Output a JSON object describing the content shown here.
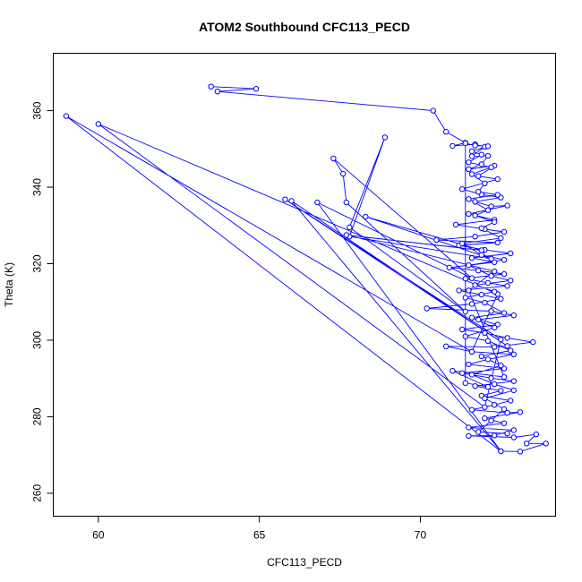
{
  "chart_data": {
    "type": "line",
    "title": "ATOM2 Southbound CFC113_PECD",
    "xlabel": "CFC113_PECD",
    "ylabel": "Theta (K)",
    "xlim": [
      58.6,
      74.2
    ],
    "ylim": [
      254,
      375
    ],
    "xticks": [
      60,
      65,
      70
    ],
    "yticks": [
      260,
      280,
      300,
      320,
      340,
      360
    ],
    "markers": "open-circle",
    "colors": {
      "series": "#0000ff",
      "axis": "#000000"
    },
    "series": [
      {
        "values": [
          [
            63.5,
            366.3
          ],
          [
            64.9,
            365.7
          ],
          [
            63.7,
            365.0
          ],
          [
            70.4,
            360.0
          ],
          [
            70.8,
            354.5
          ],
          [
            71.4,
            351.6
          ],
          [
            71.0,
            350.8
          ],
          [
            71.7,
            351.2
          ],
          [
            72.0,
            350.6
          ],
          [
            71.6,
            348.1
          ],
          [
            72.1,
            348.2
          ],
          [
            71.9,
            346.0
          ],
          [
            71.5,
            344.7
          ],
          [
            72.3,
            345.6
          ],
          [
            71.8,
            342.9
          ],
          [
            72.4,
            342.1
          ],
          [
            71.3,
            339.5
          ],
          [
            71.9,
            338.1
          ],
          [
            72.5,
            337.3
          ],
          [
            71.7,
            336.2
          ],
          [
            72.2,
            335.0
          ],
          [
            72.7,
            335.2
          ],
          [
            71.5,
            333.0
          ],
          [
            72.3,
            331.5
          ],
          [
            71.1,
            330.2
          ],
          [
            72.0,
            329.0
          ],
          [
            72.6,
            328.3
          ],
          [
            71.7,
            327.1
          ],
          [
            70.5,
            326.2
          ],
          [
            72.4,
            325.5
          ],
          [
            71.2,
            324.8
          ],
          [
            72.0,
            323.6
          ],
          [
            72.8,
            322.7
          ],
          [
            71.6,
            321.5
          ],
          [
            72.3,
            320.4
          ],
          [
            70.9,
            319.0
          ],
          [
            71.8,
            318.2
          ],
          [
            72.6,
            317.3
          ],
          [
            71.4,
            316.1
          ],
          [
            72.1,
            315.0
          ],
          [
            72.7,
            314.2
          ],
          [
            71.2,
            313.0
          ],
          [
            71.9,
            311.9
          ],
          [
            72.5,
            310.8
          ],
          [
            71.6,
            309.5
          ],
          [
            70.2,
            308.3
          ],
          [
            72.2,
            307.6
          ],
          [
            72.9,
            306.5
          ],
          [
            71.8,
            305.4
          ],
          [
            72.4,
            304.1
          ],
          [
            71.3,
            302.8
          ],
          [
            72.0,
            301.9
          ],
          [
            72.7,
            300.6
          ],
          [
            73.5,
            299.5
          ],
          [
            72.3,
            298.2
          ],
          [
            70.8,
            298.4
          ],
          [
            71.6,
            297.0
          ],
          [
            72.9,
            296.3
          ],
          [
            72.1,
            295.0
          ],
          [
            71.5,
            293.7
          ],
          [
            72.6,
            292.6
          ],
          [
            71.3,
            291.4
          ],
          [
            72.2,
            290.1
          ],
          [
            72.9,
            289.3
          ],
          [
            71.7,
            288.0
          ],
          [
            72.5,
            286.8
          ],
          [
            71.9,
            285.5
          ],
          [
            72.8,
            284.2
          ],
          [
            72.3,
            283.1
          ],
          [
            71.6,
            281.8
          ],
          [
            72.7,
            281.0
          ],
          [
            73.1,
            281.2
          ],
          [
            72.0,
            279.6
          ],
          [
            72.6,
            278.3
          ],
          [
            71.5,
            277.2
          ],
          [
            72.9,
            276.5
          ],
          [
            72.3,
            275.1
          ],
          [
            71.5,
            275.0
          ],
          [
            72.9,
            274.6
          ],
          [
            73.6,
            275.4
          ],
          [
            73.3,
            273.0
          ],
          [
            73.9,
            273.0
          ],
          [
            73.1,
            270.9
          ],
          [
            72.5,
            271.0
          ],
          [
            59.0,
            358.6
          ],
          [
            71.6,
            297.0
          ],
          [
            72.4,
            312.1
          ],
          [
            60.0,
            356.5
          ],
          [
            72.0,
            282.5
          ],
          [
            72.5,
            300.2
          ],
          [
            65.8,
            336.8
          ],
          [
            72.7,
            298.5
          ],
          [
            66.0,
            336.4
          ],
          [
            72.5,
            271.0
          ],
          [
            66.8,
            336.0
          ],
          [
            71.6,
            316.2
          ],
          [
            67.3,
            347.5
          ],
          [
            67.6,
            343.5
          ],
          [
            67.7,
            336.0
          ],
          [
            71.4,
            307.5
          ],
          [
            67.8,
            329.5
          ],
          [
            68.9,
            353.0
          ],
          [
            67.8,
            327.1
          ],
          [
            72.2,
            321.3
          ],
          [
            68.3,
            332.3
          ],
          [
            71.9,
            323.5
          ],
          [
            67.7,
            327.5
          ],
          [
            72.3,
            318.0
          ],
          [
            71.5,
            313.0
          ],
          [
            72.6,
            290.4
          ],
          [
            71.0,
            292.0
          ],
          [
            72.1,
            287.8
          ],
          [
            71.4,
            288.8
          ],
          [
            71.4,
            351.5
          ],
          [
            71.7,
            350.9
          ],
          [
            72.1,
            350.7
          ],
          [
            71.6,
            349.4
          ],
          [
            71.9,
            348.5
          ],
          [
            71.5,
            346.5
          ],
          [
            72.2,
            345.2
          ],
          [
            71.6,
            343.4
          ],
          [
            72.0,
            341.0
          ],
          [
            71.8,
            338.8
          ],
          [
            72.4,
            338.0
          ],
          [
            71.5,
            336.9
          ],
          [
            72.1,
            334.0
          ],
          [
            71.7,
            332.6
          ],
          [
            72.3,
            330.9
          ],
          [
            71.9,
            329.3
          ],
          [
            72.5,
            326.7
          ],
          [
            71.3,
            325.3
          ],
          [
            71.9,
            322.3
          ],
          [
            72.6,
            321.0
          ],
          [
            71.5,
            319.6
          ],
          [
            72.2,
            316.8
          ],
          [
            72.8,
            315.6
          ],
          [
            71.7,
            314.4
          ],
          [
            72.3,
            312.7
          ],
          [
            71.4,
            311.1
          ],
          [
            72.0,
            309.8
          ],
          [
            72.6,
            307.1
          ],
          [
            71.6,
            305.9
          ],
          [
            72.3,
            303.3
          ],
          [
            71.4,
            301.0
          ],
          [
            72.1,
            299.8
          ],
          [
            72.8,
            297.3
          ],
          [
            71.9,
            295.8
          ],
          [
            72.5,
            293.4
          ],
          [
            71.6,
            291.0
          ],
          [
            72.3,
            288.5
          ],
          [
            72.9,
            286.9
          ],
          [
            72.0,
            284.8
          ],
          [
            72.6,
            282.0
          ],
          [
            72.2,
            279.0
          ],
          [
            71.8,
            276.0
          ],
          [
            72.7,
            275.6
          ]
        ]
      }
    ]
  }
}
